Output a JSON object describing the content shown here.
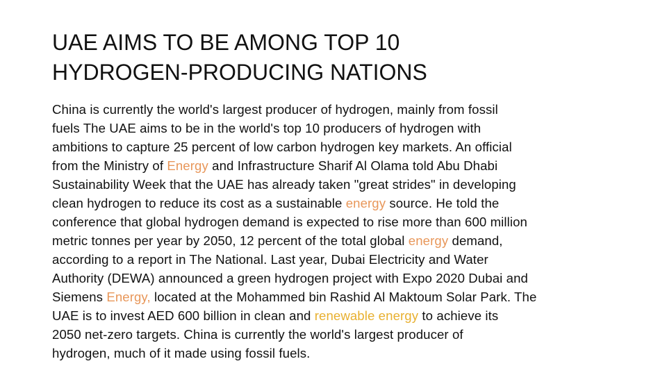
{
  "title": {
    "line1": "UAE AIMS TO BE AMONG TOP 10",
    "line2": "HYDROGEN-PRODUCING NATIONS"
  },
  "body": {
    "lines": [
      [
        "China is currently the world's largest producer of hydrogen, mainly from fossil"
      ],
      [
        "fuels The UAE aims to be in the world's top 10 producers of hydrogen with"
      ],
      [
        "ambitions to capture 25 percent of low carbon hydrogen key markets. An official"
      ],
      [
        "from the Ministry of ",
        "Energy",
        " and Infrastructure Sharif Al Olama told Abu Dhabi"
      ],
      [
        "Sustainability Week that the UAE has already taken \"great strides\" in developing"
      ],
      [
        "clean hydrogen to reduce its cost as a sustainable ",
        "energy",
        " source. He told the"
      ],
      [
        "conference that global hydrogen demand is expected to rise more than 600 million"
      ],
      [
        "metric tonnes per year by 2050, 12 percent of the total global ",
        "energy",
        " demand,"
      ],
      [
        "according to a report in The National. Last year, Dubai Electricity and Water"
      ],
      [
        "Authority (DEWA) announced a green hydrogen project with Expo 2020 Dubai and"
      ],
      [
        "Siemens ",
        "Energy,",
        " located at the Mohammed bin Rashid Al Maktoum Solar Park. The"
      ],
      [
        "UAE is to invest AED 600 billion in clean and ",
        "renewable energy",
        " to achieve its"
      ],
      [
        "2050 net-zero targets. China is currently the world's largest producer of"
      ],
      [
        "hydrogen, much of it made using fossil fuels."
      ]
    ]
  },
  "colors": {
    "text": "#111111",
    "energy_link": "#e8975a",
    "renewable_link": "#e8b030",
    "background": "#ffffff"
  }
}
